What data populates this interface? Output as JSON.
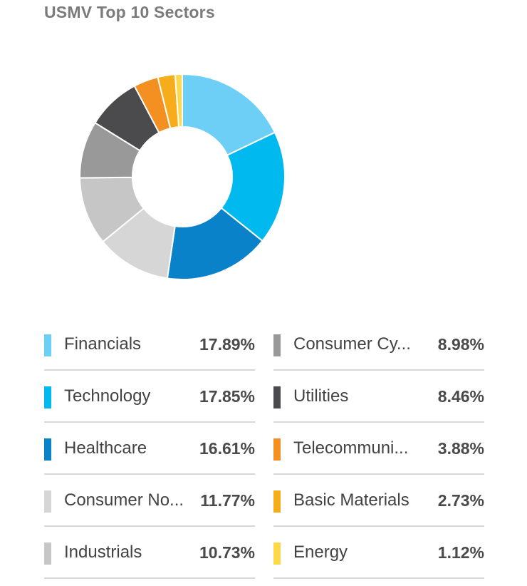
{
  "title": "USMV Top 10 Sectors",
  "chart_data": {
    "type": "pie",
    "title": "USMV Top 10 Sectors",
    "categories": [
      "Financials",
      "Technology",
      "Healthcare",
      "Consumer No...",
      "Industrials",
      "Consumer Cy...",
      "Utilities",
      "Telecommuni...",
      "Basic Materials",
      "Energy"
    ],
    "values": [
      17.89,
      17.85,
      16.61,
      11.77,
      10.73,
      8.98,
      8.46,
      3.88,
      2.73,
      1.12
    ],
    "value_labels": [
      "17.89%",
      "17.85%",
      "16.61%",
      "11.77%",
      "10.73%",
      "8.98%",
      "8.46%",
      "3.88%",
      "2.73%",
      "1.12%"
    ],
    "colors": [
      "#6ecff6",
      "#00b9ee",
      "#0a82c9",
      "#d6d6d6",
      "#c6c6c6",
      "#999999",
      "#4b4b4d",
      "#f39021",
      "#f6ac1b",
      "#fdd849"
    ],
    "donut": true,
    "legend": "bottom"
  }
}
